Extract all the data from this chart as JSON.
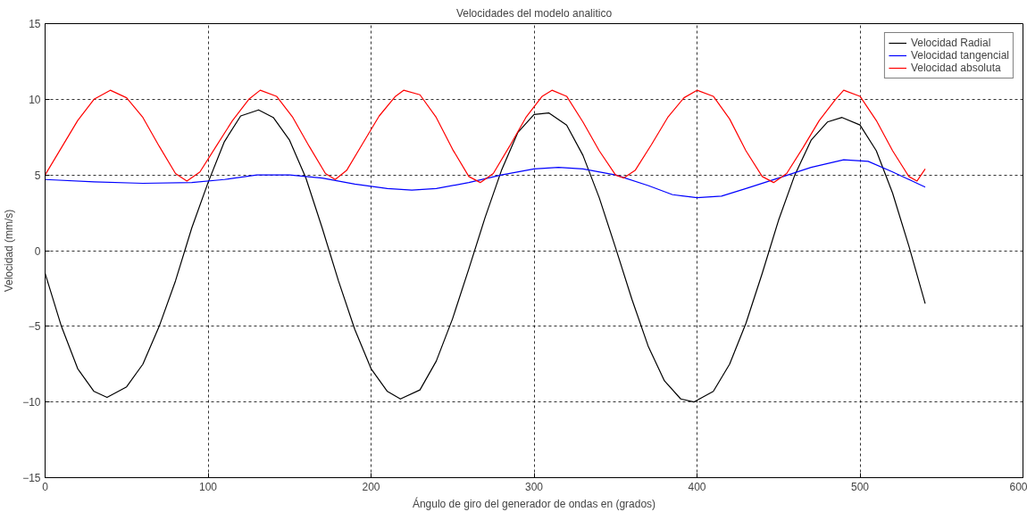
{
  "chart_data": {
    "type": "line",
    "title": "Velocidades del modelo analitico",
    "xlabel": "Ángulo de giro del generador de ondas en (grados)",
    "ylabel": "Velocidad (mm/s)",
    "xlim": [
      0,
      600
    ],
    "ylim": [
      -15,
      15
    ],
    "xticks": [
      0,
      100,
      200,
      300,
      400,
      500,
      600
    ],
    "yticks": [
      -15,
      -10,
      -5,
      0,
      5,
      10,
      15
    ],
    "grid": true,
    "legend": "top right",
    "marker": "none",
    "line_style": "solid",
    "series": [
      {
        "name": "Velocidad Radial",
        "color": "#000000",
        "x": [
          0,
          10,
          20,
          30,
          38,
          50,
          60,
          70,
          80,
          90,
          100,
          110,
          120,
          131,
          140,
          150,
          160,
          170,
          180,
          190,
          200,
          210,
          218,
          230,
          240,
          250,
          260,
          270,
          280,
          290,
          300,
          309,
          320,
          330,
          340,
          350,
          360,
          370,
          380,
          390,
          398,
          410,
          420,
          430,
          440,
          450,
          460,
          470,
          480,
          489,
          500,
          510,
          520,
          530,
          540
        ],
        "values": [
          -1.5,
          -5,
          -7.8,
          -9.3,
          -9.7,
          -9.0,
          -7.5,
          -5,
          -2,
          1.5,
          4.5,
          7.2,
          8.9,
          9.3,
          8.8,
          7.3,
          4.8,
          1.5,
          -2,
          -5.2,
          -7.8,
          -9.3,
          -9.8,
          -9.2,
          -7.3,
          -4.5,
          -1.2,
          2.2,
          5.3,
          7.8,
          9.0,
          9.1,
          8.3,
          6.3,
          3.5,
          0.2,
          -3.2,
          -6.3,
          -8.6,
          -9.8,
          -10,
          -9.3,
          -7.5,
          -4.8,
          -1.5,
          2,
          5,
          7.3,
          8.5,
          8.8,
          8.3,
          6.6,
          3.8,
          0.3,
          -3.5
        ]
      },
      {
        "name": "Velocidad tangencial",
        "color": "#0000ff",
        "x": [
          0,
          30,
          60,
          90,
          110,
          130,
          150,
          170,
          190,
          210,
          225,
          240,
          260,
          280,
          300,
          315,
          330,
          350,
          370,
          385,
          400,
          415,
          430,
          450,
          470,
          490,
          505,
          520,
          540
        ],
        "values": [
          4.7,
          4.55,
          4.45,
          4.5,
          4.7,
          5.0,
          5.0,
          4.8,
          4.4,
          4.1,
          4.0,
          4.1,
          4.5,
          5.0,
          5.4,
          5.5,
          5.4,
          5.0,
          4.3,
          3.7,
          3.5,
          3.6,
          4.1,
          4.8,
          5.5,
          6.0,
          5.9,
          5.2,
          4.2
        ]
      },
      {
        "name": "Velocidad absoluta",
        "color": "#ff0000",
        "x": [
          0,
          10,
          20,
          30,
          40,
          50,
          60,
          70,
          80,
          87,
          95,
          105,
          115,
          125,
          132,
          142,
          152,
          162,
          172,
          178,
          185,
          195,
          205,
          215,
          220,
          230,
          240,
          250,
          260,
          267,
          275,
          285,
          295,
          305,
          311,
          320,
          330,
          340,
          350,
          355,
          362,
          372,
          382,
          392,
          400,
          410,
          420,
          430,
          440,
          447,
          455,
          465,
          475,
          485,
          490,
          500,
          510,
          520,
          530,
          535,
          540
        ],
        "values": [
          5.0,
          6.8,
          8.6,
          10.0,
          10.6,
          10.1,
          8.8,
          6.9,
          5.1,
          4.6,
          5.2,
          6.9,
          8.6,
          10.0,
          10.6,
          10.2,
          8.8,
          6.9,
          5.1,
          4.7,
          5.3,
          7.1,
          8.9,
          10.2,
          10.6,
          10.3,
          8.8,
          6.7,
          4.9,
          4.5,
          5.1,
          6.9,
          8.8,
          10.2,
          10.6,
          10.2,
          8.5,
          6.6,
          5.0,
          4.8,
          5.3,
          7.0,
          8.8,
          10.1,
          10.6,
          10.2,
          8.7,
          6.6,
          4.9,
          4.5,
          5.1,
          6.8,
          8.6,
          10.0,
          10.6,
          10.2,
          8.6,
          6.6,
          4.9,
          4.6,
          5.4
        ]
      }
    ]
  }
}
